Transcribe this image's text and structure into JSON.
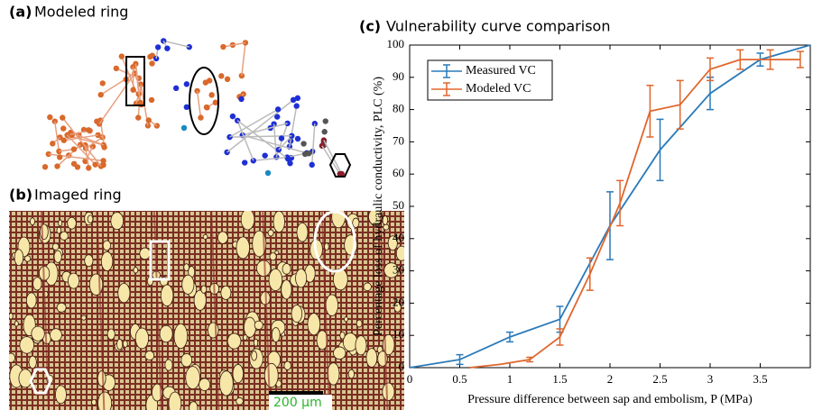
{
  "panel_a": {
    "tag": "(a)",
    "title": "Modeled ring"
  },
  "panel_b": {
    "tag": "(b)",
    "title": "Imaged ring",
    "scale_bar": "200 µm"
  },
  "chart_data": {
    "type": "line",
    "tag": "(c)",
    "title": "Vulnerability curve comparison",
    "xlabel": "Pressure difference between sap and embolism, P (MPa)",
    "ylabel": "Percentage loss of hydraulic conductivity, PLC (%)",
    "xlim": [
      0,
      4
    ],
    "ylim": [
      0,
      100
    ],
    "xticks": [
      0,
      0.5,
      1,
      1.5,
      2,
      2.5,
      3,
      3.5
    ],
    "yticks": [
      0,
      10,
      20,
      30,
      40,
      50,
      60,
      70,
      80,
      90,
      100
    ],
    "legend": "upper left",
    "series": [
      {
        "name": "Measured VC",
        "color": "#2a7ab9",
        "x": [
          0,
          0.5,
          1,
          1.5,
          2,
          2.5,
          3,
          3.5,
          4
        ],
        "values": [
          0,
          2.5,
          9.5,
          15,
          44,
          67.5,
          85,
          95.5,
          100
        ],
        "errors": [
          null,
          1.5,
          1.5,
          4,
          10.5,
          9.5,
          5,
          2,
          null
        ]
      },
      {
        "name": "Modeled VC",
        "color": "#e0662d",
        "x": [
          0.6,
          0.9,
          1.2,
          1.5,
          1.8,
          2.1,
          2.4,
          2.7,
          3,
          3.3,
          3.6,
          3.9
        ],
        "values": [
          0,
          1,
          2.5,
          9.5,
          29,
          51,
          79.5,
          81.5,
          92.5,
          95.5,
          95.5,
          95.5
        ],
        "errors": [
          null,
          null,
          0.7,
          2.5,
          5,
          7,
          8,
          7.5,
          3.5,
          3,
          3,
          2.5
        ]
      }
    ]
  }
}
